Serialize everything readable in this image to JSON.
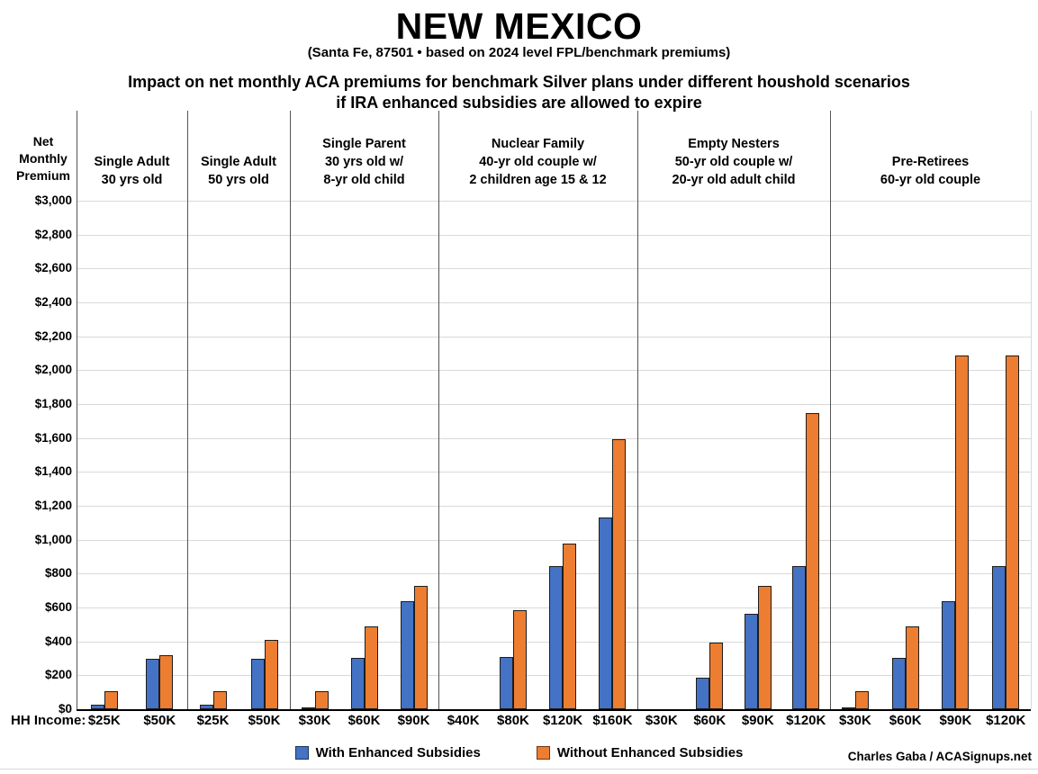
{
  "title": "NEW MEXICO",
  "subtitle": "(Santa Fe, 87501 • based on 2024 level FPL/benchmark premiums)",
  "heading_line1": "Impact on net monthly ACA premiums for benchmark Silver plans under different houshold scenarios",
  "heading_line2": "if IRA enhanced subsidies are allowed to expire",
  "y_axis_title_lines": [
    "Net",
    "Monthly",
    "Premium"
  ],
  "x_axis_prefix": "HH Income:",
  "credit": "Charles Gaba / ACASignups.net",
  "colors": {
    "with_enhanced": "#4472C4",
    "without_enhanced": "#ED7D31",
    "gridline": "#d9d9d9",
    "separator": "#555555"
  },
  "chart_data": {
    "type": "bar",
    "title": "Impact on net monthly ACA premiums for benchmark Silver plans under different houshold scenarios if IRA enhanced subsidies are allowed to expire",
    "location_note": "Santa Fe, 87501 • based on 2024 level FPL/benchmark premiums",
    "xlabel": "HH Income",
    "ylabel": "Net Monthly Premium",
    "ylim": [
      0,
      3000
    ],
    "ytick_step": 200,
    "ytick_labels": [
      "$0",
      "$200",
      "$400",
      "$600",
      "$800",
      "$1,000",
      "$1,200",
      "$1,400",
      "$1,600",
      "$1,800",
      "$2,000",
      "$2,200",
      "$2,400",
      "$2,600",
      "$2,800",
      "$3,000"
    ],
    "grid": "horizontal",
    "legend_position": "bottom",
    "series": [
      {
        "name": "With Enhanced Subsidies",
        "color": "#4472C4"
      },
      {
        "name": "Without Enhanced Subsidies",
        "color": "#ED7D31"
      }
    ],
    "groups": [
      {
        "header_lines": [
          "Single Adult",
          "30 yrs old"
        ],
        "categories": [
          "$25K",
          "$50K"
        ],
        "with_enhanced": [
          25,
          295
        ],
        "without_enhanced": [
          105,
          320
        ]
      },
      {
        "header_lines": [
          "Single Adult",
          "50 yrs old"
        ],
        "categories": [
          "$25K",
          "$50K"
        ],
        "with_enhanced": [
          25,
          295
        ],
        "without_enhanced": [
          105,
          410
        ]
      },
      {
        "header_lines": [
          "Single Parent",
          "30 yrs old w/",
          "8-yr old child"
        ],
        "categories": [
          "$30K",
          "$60K",
          "$90K"
        ],
        "with_enhanced": [
          10,
          305,
          635
        ],
        "without_enhanced": [
          105,
          490,
          730
        ]
      },
      {
        "header_lines": [
          "Nuclear Family",
          "40-yr old couple w/",
          "2 children age 15 & 12"
        ],
        "categories": [
          "$40K",
          "$80K",
          "$120K",
          "$160K"
        ],
        "with_enhanced": [
          0,
          310,
          845,
          1130
        ],
        "without_enhanced": [
          0,
          585,
          975,
          1595
        ]
      },
      {
        "header_lines": [
          "Empty Nesters",
          "50-yr old couple w/",
          "20-yr old adult child"
        ],
        "categories": [
          "$30K",
          "$60K",
          "$90K",
          "$120K"
        ],
        "with_enhanced": [
          0,
          185,
          565,
          845
        ],
        "without_enhanced": [
          0,
          395,
          730,
          1745
        ]
      },
      {
        "header_lines": [
          "Pre-Retirees",
          "60-yr old couple"
        ],
        "categories": [
          "$30K",
          "$60K",
          "$90K",
          "$120K"
        ],
        "with_enhanced": [
          10,
          305,
          635,
          845
        ],
        "without_enhanced": [
          105,
          490,
          2085,
          2085
        ]
      }
    ]
  }
}
